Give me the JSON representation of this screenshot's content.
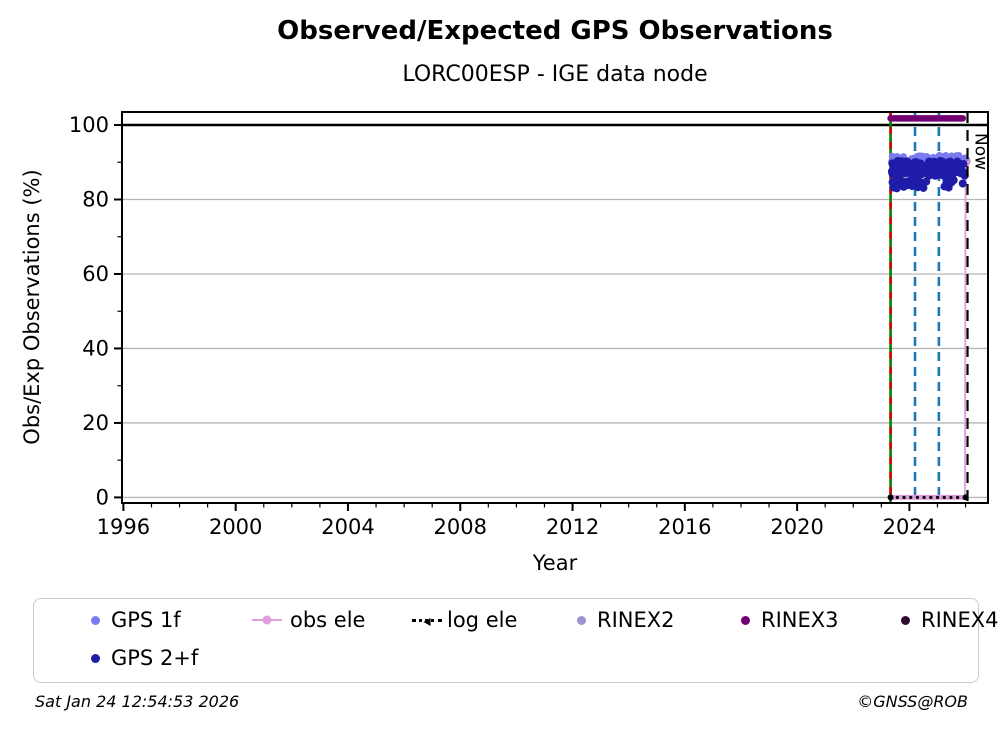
{
  "title": "Observed/Expected GPS Observations",
  "subtitle": "LORC00ESP - IGE data node",
  "footer": {
    "timestamp": "Sat Jan 24 12:54:53 2026",
    "copyright": "©GNSS@ROB"
  },
  "legend": {
    "position": "below-chart",
    "items": [
      {
        "label": "GPS 1f",
        "marker": "dot",
        "color": "#7b7bef"
      },
      {
        "label": "GPS 2+f",
        "marker": "dot",
        "color": "#1e1ca8"
      },
      {
        "label": "obs ele",
        "marker": "line-dot",
        "color": "#dda0dd"
      },
      {
        "label": "log ele",
        "marker": "dotted-arrow",
        "color": "#000000"
      },
      {
        "label": "RINEX2",
        "marker": "dot",
        "color": "#9a93cf"
      },
      {
        "label": "RINEX3",
        "marker": "dot",
        "color": "#730073"
      },
      {
        "label": "RINEX4",
        "marker": "dot",
        "color": "#31082f"
      }
    ]
  },
  "chart_data": {
    "type": "scatter",
    "title": "Observed/Expected GPS Observations",
    "subtitle": "LORC00ESP - IGE data node",
    "xlabel": "Year",
    "ylabel": "Obs/Exp Observations (%)",
    "xlim": [
      1995.95,
      2026.8
    ],
    "ylim": [
      -1.5,
      103.5
    ],
    "xticks": [
      1996,
      2000,
      2004,
      2008,
      2012,
      2016,
      2020,
      2024
    ],
    "xminor_step": 1,
    "yticks": [
      0,
      20,
      40,
      60,
      80,
      100
    ],
    "yminor_step": 10,
    "grid": "horizontal-major",
    "grid_color": "#b6b6b6",
    "reference_line": {
      "y": 100,
      "color": "#000000",
      "width": 2.5
    },
    "now": {
      "x": 2026.07,
      "label": "Now",
      "color": "#000000",
      "dash": [
        11,
        7
      ]
    },
    "event_lines": [
      {
        "x": 2023.33,
        "style": "green-red-dashed",
        "colors": [
          "#008000",
          "#d40000"
        ]
      },
      {
        "x": 2024.2,
        "style": "dashed",
        "color": "#1f77b4"
      },
      {
        "x": 2025.05,
        "style": "dashed",
        "color": "#1f77b4"
      }
    ],
    "series": [
      {
        "name": "RINEX3",
        "type": "hbar",
        "y": 101.8,
        "x_range": [
          2023.33,
          2025.9
        ],
        "color": "#730073",
        "line_width": 6.5
      },
      {
        "name": "obs ele",
        "type": "line",
        "color": "#dda0dd",
        "points": [
          [
            2023.33,
            0
          ],
          [
            2025.98,
            0
          ],
          [
            2026.0,
            90.3
          ]
        ],
        "base_width": 5,
        "rise_width": 1.8,
        "end_marker_r": 4.5
      },
      {
        "name": "log ele",
        "type": "dotted-line",
        "color": "#000000",
        "y": 0,
        "x_range": [
          2023.33,
          2026.0
        ],
        "dot_gap": 6.6,
        "end_dot_r": 3
      },
      {
        "name": "GPS 1f",
        "type": "scatter",
        "color": "#7b7bef",
        "marker_r": 3.3,
        "band": {
          "x_range": [
            2023.36,
            2025.98
          ],
          "y_range": [
            90.1,
            91.9
          ],
          "count": 90,
          "seed": 11
        },
        "points": [
          [
            2026.0,
            91.0
          ]
        ]
      },
      {
        "name": "GPS 2+f",
        "type": "scatter",
        "color": "#1e1ca8",
        "marker_r": 4.0,
        "band": {
          "x_range": [
            2023.36,
            2025.98
          ],
          "y_range": [
            86.3,
            90.4
          ],
          "count": 150,
          "seed": 23
        },
        "points": [
          [
            2023.4,
            84.6
          ],
          [
            2023.44,
            83.2
          ],
          [
            2023.5,
            84.9
          ],
          [
            2023.55,
            83.0
          ],
          [
            2023.6,
            85.3
          ],
          [
            2023.66,
            83.8
          ],
          [
            2023.72,
            85.0
          ],
          [
            2023.8,
            83.4
          ],
          [
            2023.88,
            84.7
          ],
          [
            2023.95,
            83.9
          ],
          [
            2024.02,
            85.1
          ],
          [
            2024.1,
            83.6
          ],
          [
            2024.22,
            84.9
          ],
          [
            2024.3,
            83.3
          ],
          [
            2024.42,
            84.5
          ],
          [
            2024.5,
            83.1
          ],
          [
            2024.6,
            84.8
          ],
          [
            2025.25,
            83.5
          ],
          [
            2025.32,
            84.9
          ],
          [
            2025.4,
            83.2
          ],
          [
            2025.5,
            84.6
          ],
          [
            2025.58,
            85.2
          ],
          [
            2025.9,
            84.3
          ],
          [
            2025.97,
            86.5
          ]
        ]
      }
    ]
  }
}
